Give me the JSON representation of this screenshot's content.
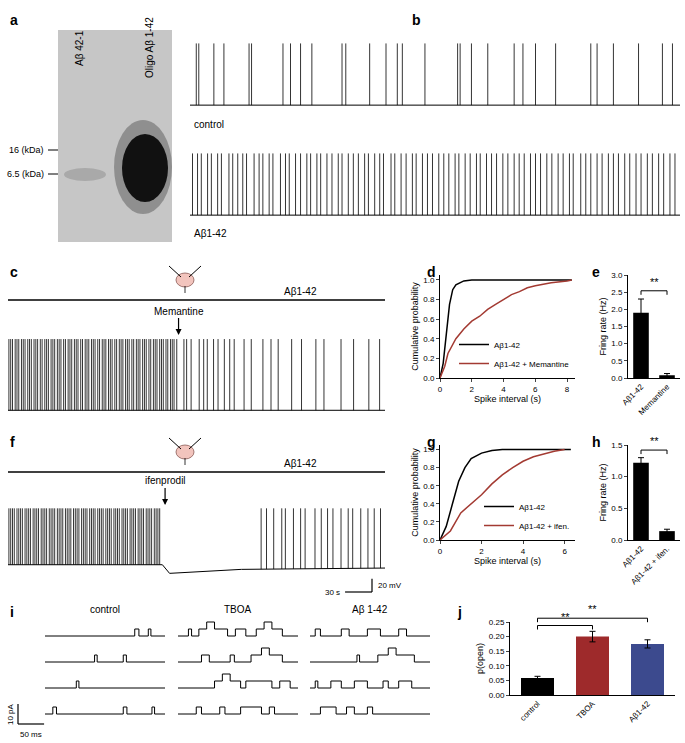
{
  "chart_data": [
    {
      "panel": "a",
      "type": "blot",
      "lanes": [
        "Aβ 42-1",
        "Oligo Aβ 1-42"
      ],
      "markers": [
        "16 (kDa)",
        "6.5 (kDa)"
      ]
    },
    {
      "panel": "b",
      "type": "trace",
      "xlim": [
        0,
        390
      ],
      "ylim": [
        -70,
        35
      ],
      "tick_labels": false,
      "series": [
        {
          "name": "control",
          "color": "#000000",
          "peak": 30,
          "baseline": {
            "x": [
              0,
              390
            ],
            "y": [
              -60,
              -60
            ]
          },
          "spike_times": [
            5,
            7,
            19,
            27,
            47,
            49,
            74,
            80,
            88,
            97,
            121,
            124,
            143,
            156,
            165,
            169,
            187,
            213,
            215,
            224,
            237,
            258,
            265,
            275,
            291,
            319,
            324,
            337,
            357,
            376,
            384
          ]
        },
        {
          "name": "Aβ1-42",
          "color": "#000000",
          "peak": 30,
          "baseline": {
            "x": [
              0,
              390
            ],
            "y": [
              -60,
              -60
            ]
          },
          "spike_times": [
            2,
            6,
            9,
            14,
            17,
            22,
            25,
            31,
            34,
            38,
            42,
            45,
            51,
            55,
            58,
            63,
            66,
            72,
            76,
            79,
            84,
            88,
            93,
            96,
            101,
            104,
            109,
            113,
            118,
            121,
            126,
            130,
            134,
            139,
            142,
            147,
            151,
            154,
            160,
            163,
            168,
            172,
            177,
            180,
            185,
            189,
            193,
            198,
            202,
            206,
            211,
            214,
            219,
            223,
            228,
            231,
            236,
            240,
            244,
            249,
            253,
            258,
            262,
            266,
            271,
            275,
            279,
            284,
            288,
            293,
            297,
            302,
            305,
            311,
            315,
            319,
            324,
            328,
            333,
            337,
            341,
            346,
            350,
            355,
            359,
            364,
            368,
            373,
            377,
            382,
            386
          ]
        }
      ]
    },
    {
      "panel": "c",
      "type": "trace",
      "xlim": [
        0,
        420
      ],
      "ylim": [
        -70,
        35
      ],
      "tick_labels": false,
      "application": "Aβ1-42",
      "annotations": [
        {
          "text": "Memantine",
          "x": 190
        }
      ],
      "series": [
        {
          "color": "#000000",
          "peak": 30,
          "baseline": {
            "x": [
              0,
              420
            ],
            "y": [
              -58,
              -58
            ]
          },
          "spike_times": [
            1,
            3,
            5,
            8,
            10,
            12,
            15,
            17,
            19,
            22,
            24,
            26,
            29,
            31,
            33,
            36,
            38,
            41,
            43,
            45,
            48,
            50,
            52,
            55,
            57,
            59,
            62,
            64,
            67,
            69,
            71,
            74,
            76,
            78,
            81,
            83,
            86,
            88,
            90,
            93,
            95,
            97,
            100,
            102,
            105,
            107,
            109,
            112,
            114,
            116,
            119,
            121,
            124,
            126,
            128,
            131,
            133,
            135,
            138,
            140,
            143,
            145,
            147,
            150,
            152,
            154,
            157,
            159,
            162,
            164,
            166,
            169,
            171,
            173,
            176,
            178,
            181,
            183,
            185,
            188,
            196,
            199,
            204,
            213,
            218,
            222,
            229,
            234,
            241,
            247,
            252,
            263,
            271,
            284,
            293,
            301,
            316,
            327,
            343,
            352,
            371,
            385,
            402,
            414
          ]
        }
      ]
    },
    {
      "panel": "d",
      "type": "line",
      "x_label": "Spike interval (s)",
      "y_label": "Cumulative probability",
      "xlim": [
        0,
        8.5
      ],
      "xticks": [
        0,
        2,
        4,
        6,
        8
      ],
      "ylim": [
        0,
        1.05
      ],
      "yticks": [
        {
          "value": 0,
          "label": "0.0"
        },
        0.2,
        0.4,
        0.6,
        0.8,
        {
          "value": 1,
          "label": "1.0"
        }
      ],
      "legend": "lower right",
      "series": [
        {
          "name": "Aβ1-42",
          "color": "#000000",
          "x": [
            0,
            0.2,
            0.4,
            0.6,
            0.8,
            1.0,
            1.5,
            2.0,
            8.3
          ],
          "values": [
            0,
            0.15,
            0.45,
            0.75,
            0.9,
            0.95,
            0.99,
            1.0,
            1.0
          ]
        },
        {
          "name": "Aβ1-42 + Memantine",
          "color": "#a33a32",
          "x": [
            0,
            0.3,
            0.5,
            1.0,
            1.5,
            2.0,
            2.5,
            3.0,
            3.5,
            4.0,
            4.5,
            5.0,
            5.5,
            6.0,
            7.0,
            8.0,
            8.3
          ],
          "values": [
            0,
            0.12,
            0.25,
            0.4,
            0.5,
            0.58,
            0.63,
            0.7,
            0.75,
            0.8,
            0.85,
            0.88,
            0.92,
            0.94,
            0.97,
            0.99,
            1.0
          ]
        }
      ]
    },
    {
      "panel": "e",
      "type": "bar",
      "categories": [
        "Aβ1-42",
        "Memantine"
      ],
      "values": [
        1.9,
        0.08
      ],
      "errors": [
        0.4,
        0.05
      ],
      "color": "#000000",
      "y_label": "Fring rate (Hz)",
      "ylim": [
        0,
        3
      ],
      "yticks": [
        {
          "value": 0,
          "label": "0.0"
        },
        0.5,
        {
          "value": 1,
          "label": "1.0"
        },
        1.5,
        {
          "value": 2,
          "label": "2.0"
        },
        2.5,
        {
          "value": 3,
          "label": "3.0"
        }
      ],
      "significance": [
        {
          "from": "Aβ1-42",
          "to": "Memantine",
          "label": "**"
        }
      ]
    },
    {
      "panel": "f",
      "type": "trace",
      "xlim": [
        0,
        420
      ],
      "ylim": [
        -75,
        35
      ],
      "tick_labels": false,
      "application": "Aβ1-42",
      "annotations": [
        {
          "text": "ifenprodil",
          "x": 175
        }
      ],
      "scale_bar": {
        "x": 30,
        "x_label": "30 s",
        "y": 20,
        "y_label": "20 mV"
      },
      "series": [
        {
          "color": "#000000",
          "peak": 30,
          "baseline": {
            "x": [
              0,
              172,
              180,
              260,
              420
            ],
            "y": [
              -55,
              -55,
              -68,
              -62,
              -60
            ]
          },
          "spike_times": [
            1,
            3,
            5,
            7,
            10,
            12,
            14,
            16,
            19,
            21,
            23,
            25,
            28,
            30,
            32,
            34,
            37,
            39,
            41,
            43,
            46,
            48,
            50,
            52,
            55,
            57,
            59,
            61,
            64,
            66,
            68,
            70,
            73,
            75,
            77,
            79,
            82,
            84,
            86,
            88,
            91,
            93,
            95,
            97,
            100,
            102,
            104,
            106,
            109,
            111,
            113,
            115,
            118,
            120,
            122,
            124,
            127,
            129,
            131,
            133,
            136,
            138,
            140,
            142,
            145,
            147,
            149,
            151,
            154,
            156,
            158,
            160,
            163,
            165,
            167,
            169,
            282,
            288,
            296,
            305,
            309,
            318,
            326,
            331,
            342,
            349,
            356,
            362,
            371,
            379,
            384,
            393,
            401,
            408,
            415
          ]
        }
      ]
    },
    {
      "panel": "g",
      "type": "line",
      "x_label": "Spike interval (s)",
      "y_label": "Cumulative probability",
      "xlim": [
        0,
        6.5
      ],
      "xticks": [
        0,
        2,
        4,
        6
      ],
      "ylim": [
        0,
        1.05
      ],
      "yticks": [
        {
          "value": 0,
          "label": "0.0"
        },
        0.2,
        0.4,
        0.6,
        0.8,
        {
          "value": 1,
          "label": "1.0"
        }
      ],
      "legend": "lower right",
      "series": [
        {
          "name": "Aβ1-42",
          "color": "#000000",
          "x": [
            0,
            0.3,
            0.6,
            0.9,
            1.2,
            1.5,
            2.0,
            2.5,
            3.0,
            6.3
          ],
          "values": [
            0,
            0.15,
            0.4,
            0.65,
            0.8,
            0.9,
            0.96,
            0.99,
            1.0,
            1.0
          ]
        },
        {
          "name": "Aβ1-42 + ifen.",
          "color": "#a33a32",
          "x": [
            0,
            0.5,
            1.0,
            1.5,
            2.0,
            2.5,
            3.0,
            3.5,
            4.0,
            4.5,
            5.0,
            5.5,
            6.0
          ],
          "values": [
            0,
            0.1,
            0.3,
            0.4,
            0.5,
            0.62,
            0.72,
            0.8,
            0.87,
            0.92,
            0.95,
            0.98,
            1.0
          ]
        }
      ]
    },
    {
      "panel": "h",
      "type": "bar",
      "categories": [
        "Aβ1-42",
        "Aβ1-42 + ifen."
      ],
      "values": [
        1.22,
        0.14
      ],
      "errors": [
        0.08,
        0.03
      ],
      "color": "#000000",
      "y_label": "Fring rate (Hz)",
      "ylim": [
        0,
        1.5
      ],
      "yticks": [
        {
          "value": 0,
          "label": "0.0"
        },
        0.5,
        {
          "value": 1,
          "label": "1.0"
        },
        1.5
      ],
      "significance": [
        {
          "from": "Aβ1-42",
          "to": "Aβ1-42 + ifen.",
          "label": "**"
        }
      ]
    },
    {
      "panel": "i",
      "type": "single_channel",
      "xlim": [
        0,
        230
      ],
      "ylim": [
        -2,
        9
      ],
      "tick_labels": false,
      "open_level": 3.5,
      "scale_bar": {
        "x": 50,
        "x_label": "50 ms",
        "y": 10,
        "y_label": "10 pA"
      },
      "columns": [
        {
          "name": "control",
          "rows": [
            [
              [
                172,
                180,
                1
              ],
              [
                198,
                203,
                1
              ]
            ],
            [
              [
                95,
                100,
                1
              ],
              [
                150,
                156,
                1
              ]
            ],
            [
              [
                60,
                65,
                1
              ]
            ],
            [
              [
                15,
                22,
                1
              ],
              [
                150,
                157,
                1
              ],
              [
                205,
                210,
                1
              ]
            ]
          ]
        },
        {
          "name": "TBOA",
          "rows": [
            [
              [
                20,
                26,
                1
              ],
              [
                40,
                55,
                1
              ],
              [
                55,
                70,
                2
              ],
              [
                70,
                95,
                1
              ],
              [
                110,
                130,
                1
              ],
              [
                150,
                165,
                1
              ],
              [
                165,
                180,
                2
              ],
              [
                180,
                200,
                1
              ]
            ],
            [
              [
                45,
                60,
                1
              ],
              [
                100,
                108,
                1
              ],
              [
                140,
                160,
                1
              ],
              [
                160,
                175,
                2
              ],
              [
                175,
                200,
                1
              ]
            ],
            [
              [
                70,
                85,
                1
              ],
              [
                85,
                100,
                2
              ],
              [
                100,
                120,
                1
              ],
              [
                130,
                180,
                1
              ],
              [
                195,
                215,
                1
              ]
            ],
            [
              [
                35,
                45,
                1
              ],
              [
                80,
                90,
                1
              ],
              [
                120,
                160,
                1
              ],
              [
                175,
                185,
                1
              ]
            ]
          ]
        },
        {
          "name": "Aβ 1-42",
          "rows": [
            [
              [
                10,
                20,
                1
              ],
              [
                60,
                75,
                1
              ],
              [
                110,
                135,
                1
              ],
              [
                170,
                185,
                1
              ]
            ],
            [
              [
                90,
                95,
                1
              ],
              [
                130,
                150,
                1
              ],
              [
                150,
                165,
                2
              ],
              [
                165,
                200,
                1
              ]
            ],
            [
              [
                10,
                15,
                1
              ],
              [
                40,
                60,
                1
              ],
              [
                85,
                110,
                1
              ],
              [
                140,
                150,
                1
              ],
              [
                170,
                195,
                1
              ]
            ],
            [
              [
                20,
                50,
                1
              ],
              [
                70,
                85,
                1
              ],
              [
                110,
                120,
                1
              ]
            ]
          ]
        }
      ]
    },
    {
      "panel": "j",
      "type": "bar",
      "categories": [
        "control",
        "TBOA",
        "Aβ1-42"
      ],
      "values": [
        0.058,
        0.2,
        0.175
      ],
      "errors": [
        0.006,
        0.018,
        0.014
      ],
      "colors": [
        "#000000",
        "#9e2a2b",
        "#3c4a8e"
      ],
      "y_label": "p(open)",
      "ylim": [
        0,
        0.25
      ],
      "yticks": [
        {
          "value": 0,
          "label": "0.00"
        },
        {
          "value": 0.05,
          "label": "0.05"
        },
        {
          "value": 0.1,
          "label": "0.10"
        },
        {
          "value": 0.15,
          "label": "0.15"
        },
        {
          "value": 0.2,
          "label": "0.20"
        },
        {
          "value": 0.25,
          "label": "0.25"
        }
      ],
      "significance": [
        {
          "from": "control",
          "to": "TBOA",
          "label": "**"
        },
        {
          "from": "control",
          "to": "Aβ1-42",
          "label": "**"
        }
      ]
    }
  ]
}
